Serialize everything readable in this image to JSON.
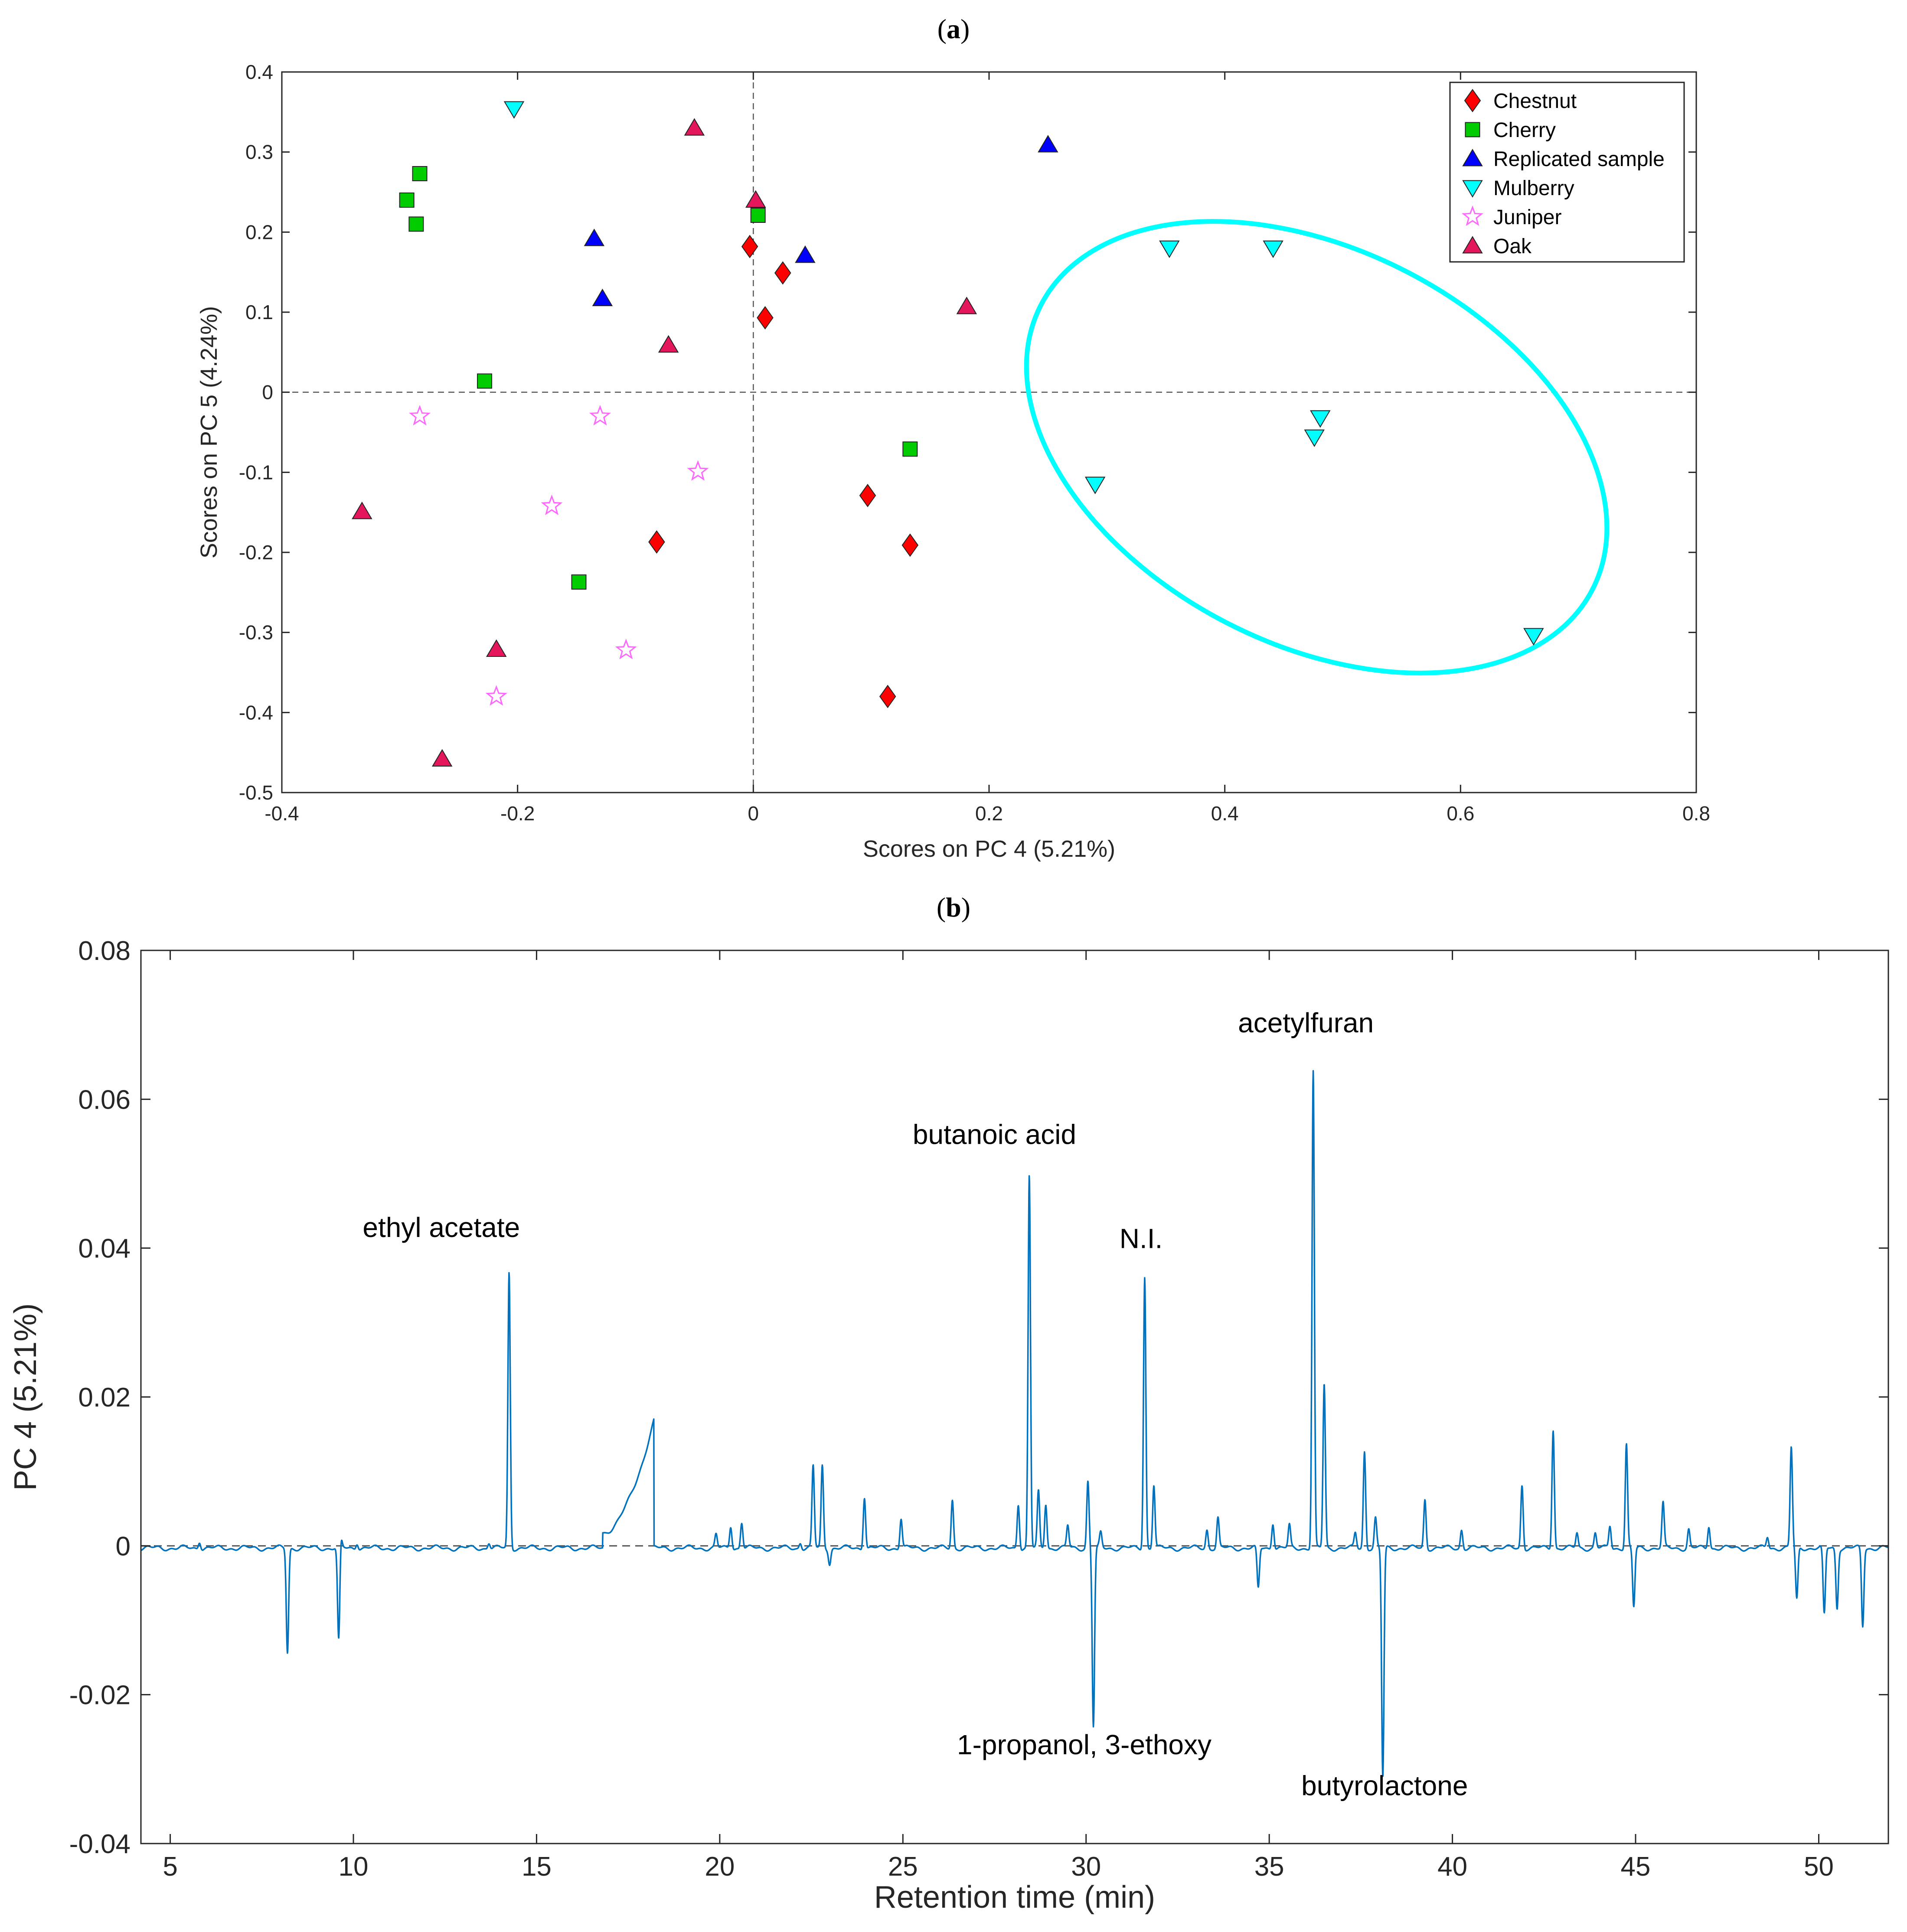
{
  "chart_data": [
    {
      "panel": "(a)",
      "panel_letter": "a",
      "type": "scatter",
      "xlabel": "Scores on PC 4 (5.21%)",
      "ylabel": "Scores on PC 5 (4.24%)",
      "xlim": [
        -0.4,
        0.8
      ],
      "ylim": [
        -0.5,
        0.4
      ],
      "xticks": [
        -0.4,
        -0.2,
        0,
        0.2,
        0.4,
        0.6,
        0.8
      ],
      "xtick_labels": [
        "-0.4",
        "-0.2",
        "0",
        "0.2",
        "0.4",
        "0.6",
        "0.8"
      ],
      "yticks": [
        -0.5,
        -0.4,
        -0.3,
        -0.2,
        -0.1,
        0,
        0.1,
        0.2,
        0.3,
        0.4
      ],
      "ytick_labels": [
        "-0.5",
        "-0.4",
        "-0.3",
        "-0.2",
        "-0.1",
        "0",
        "0.1",
        "0.2",
        "0.3",
        "0.4"
      ],
      "reference_lines": {
        "x": 0,
        "y": 0
      },
      "legend_position": "top-right",
      "ellipse": {
        "group": "Mulberry",
        "color": "#00ffff",
        "outline_points": [
          [
            0.45,
            0.225
          ],
          [
            0.74,
            -0.21
          ],
          [
            0.6,
            -0.37
          ],
          [
            0.22,
            0.0
          ],
          [
            0.21,
            0.08
          ],
          [
            0.27,
            0.185
          ]
        ]
      },
      "series": [
        {
          "name": "Chestnut",
          "marker": "diamond",
          "color": "#ff0000",
          "points": [
            [
              -0.003,
              0.182
            ],
            [
              0.025,
              0.149
            ],
            [
              0.01,
              0.093
            ],
            [
              -0.082,
              -0.187
            ],
            [
              0.097,
              -0.129
            ],
            [
              0.133,
              -0.191
            ],
            [
              0.114,
              -0.38
            ]
          ]
        },
        {
          "name": "Cherry",
          "marker": "square",
          "color": "#00cc00",
          "points": [
            [
              -0.283,
              0.273
            ],
            [
              -0.294,
              0.24
            ],
            [
              -0.286,
              0.21
            ],
            [
              -0.228,
              0.014
            ],
            [
              0.004,
              0.221
            ],
            [
              0.133,
              -0.071
            ],
            [
              -0.148,
              -0.237
            ]
          ]
        },
        {
          "name": "Replicated sample",
          "marker": "triangle-up",
          "color": "#0000ff",
          "points": [
            [
              -0.135,
              0.192
            ],
            [
              -0.128,
              0.117
            ],
            [
              0.044,
              0.171
            ],
            [
              0.25,
              0.309
            ]
          ]
        },
        {
          "name": "Mulberry",
          "marker": "triangle-down",
          "color": "#00ffff",
          "points": [
            [
              -0.203,
              0.354
            ],
            [
              0.353,
              0.18
            ],
            [
              0.441,
              0.18
            ],
            [
              0.481,
              -0.032
            ],
            [
              0.476,
              -0.056
            ],
            [
              0.29,
              -0.115
            ],
            [
              0.662,
              -0.304
            ]
          ]
        },
        {
          "name": "Juniper",
          "marker": "star",
          "color": "#ff66ff",
          "points": [
            [
              -0.283,
              -0.03
            ],
            [
              -0.13,
              -0.03
            ],
            [
              -0.047,
              -0.099
            ],
            [
              -0.171,
              -0.142
            ],
            [
              -0.108,
              -0.322
            ],
            [
              -0.218,
              -0.38
            ]
          ]
        },
        {
          "name": "Oak",
          "marker": "triangle-up",
          "color": "#e5175c",
          "points": [
            [
              -0.05,
              0.33
            ],
            [
              0.002,
              0.24
            ],
            [
              -0.072,
              0.059
            ],
            [
              0.181,
              0.107
            ],
            [
              -0.332,
              -0.149
            ],
            [
              -0.218,
              -0.321
            ],
            [
              -0.264,
              -0.458
            ]
          ]
        }
      ]
    },
    {
      "panel": "(b)",
      "panel_letter": "b",
      "type": "line",
      "xlabel": "Retention time (min)",
      "ylabel": "PC 4 (5.21%)",
      "xlim": [
        4.2,
        51.9
      ],
      "ylim": [
        -0.04,
        0.08
      ],
      "xticks": [
        5,
        10,
        15,
        20,
        25,
        30,
        35,
        40,
        45,
        50
      ],
      "xtick_labels": [
        "5",
        "10",
        "15",
        "20",
        "25",
        "30",
        "35",
        "40",
        "45",
        "50"
      ],
      "yticks": [
        -0.04,
        -0.02,
        0,
        0.02,
        0.04,
        0.06,
        0.08
      ],
      "ytick_labels": [
        "-0.04",
        "-0.02",
        "0",
        "0.02",
        "0.04",
        "0.06",
        "0.08"
      ],
      "reference_lines": {
        "y": 0
      },
      "line_color": "#0072bd",
      "baseline_offset": -0.0003,
      "peaks": [
        [
          5.8,
          0.001
        ],
        [
          8.2,
          -0.014
        ],
        [
          9.6,
          -0.013
        ],
        [
          9.65,
          0.002
        ],
        [
          10.1,
          0.0008
        ],
        [
          13.7,
          0.0008
        ],
        [
          14.25,
          0.037
        ],
        [
          19.9,
          0.0018
        ],
        [
          20.3,
          0.003
        ],
        [
          20.6,
          0.0035
        ],
        [
          22.2,
          0.0008
        ],
        [
          22.55,
          0.011
        ],
        [
          22.8,
          0.011
        ],
        [
          23.0,
          -0.002
        ],
        [
          23.95,
          0.007
        ],
        [
          24.95,
          0.004
        ],
        [
          26.35,
          0.0065
        ],
        [
          28.15,
          0.006
        ],
        [
          28.45,
          0.05
        ],
        [
          28.7,
          0.0075
        ],
        [
          28.9,
          0.006
        ],
        [
          29.5,
          0.003
        ],
        [
          30.05,
          0.009
        ],
        [
          30.2,
          -0.024
        ],
        [
          30.4,
          0.002
        ],
        [
          31.6,
          0.0365
        ],
        [
          31.85,
          0.0085
        ],
        [
          33.3,
          0.0025
        ],
        [
          33.6,
          0.004
        ],
        [
          34.7,
          -0.0055
        ],
        [
          35.1,
          0.0035
        ],
        [
          35.55,
          0.003
        ],
        [
          36.2,
          0.064
        ],
        [
          36.5,
          0.022
        ],
        [
          37.35,
          0.002
        ],
        [
          37.6,
          0.013
        ],
        [
          37.9,
          0.004
        ],
        [
          38.1,
          -0.031
        ],
        [
          39.25,
          0.0065
        ],
        [
          40.25,
          0.0025
        ],
        [
          41.9,
          0.0085
        ],
        [
          42.75,
          0.016
        ],
        [
          43.4,
          0.002
        ],
        [
          43.9,
          0.002
        ],
        [
          44.3,
          0.003
        ],
        [
          44.75,
          0.014
        ],
        [
          44.95,
          -0.008
        ],
        [
          45.75,
          0.006
        ],
        [
          46.45,
          0.0025
        ],
        [
          47.0,
          0.003
        ],
        [
          48.6,
          0.0015
        ],
        [
          49.25,
          0.0135
        ],
        [
          49.4,
          -0.007
        ],
        [
          50.15,
          -0.009
        ],
        [
          50.5,
          -0.008
        ],
        [
          51.2,
          -0.0105
        ]
      ],
      "humps": [
        {
          "x0": 16.8,
          "x1": 18.2,
          "y0": 0.002,
          "y1": 0.017
        }
      ],
      "annotations": [
        {
          "text": "ethyl acetate",
          "x": 12.4,
          "y": 0.0415
        },
        {
          "text": "butanoic acid",
          "x": 27.5,
          "y": 0.054
        },
        {
          "text": "N.I.",
          "x": 31.5,
          "y": 0.04
        },
        {
          "text": "acetylfuran",
          "x": 36.0,
          "y": 0.069
        },
        {
          "text": "1-propanol, 3-ethoxy",
          "x": 29.95,
          "y": -0.028
        },
        {
          "text": "butyrolactone",
          "x": 38.15,
          "y": -0.0335
        }
      ]
    }
  ]
}
